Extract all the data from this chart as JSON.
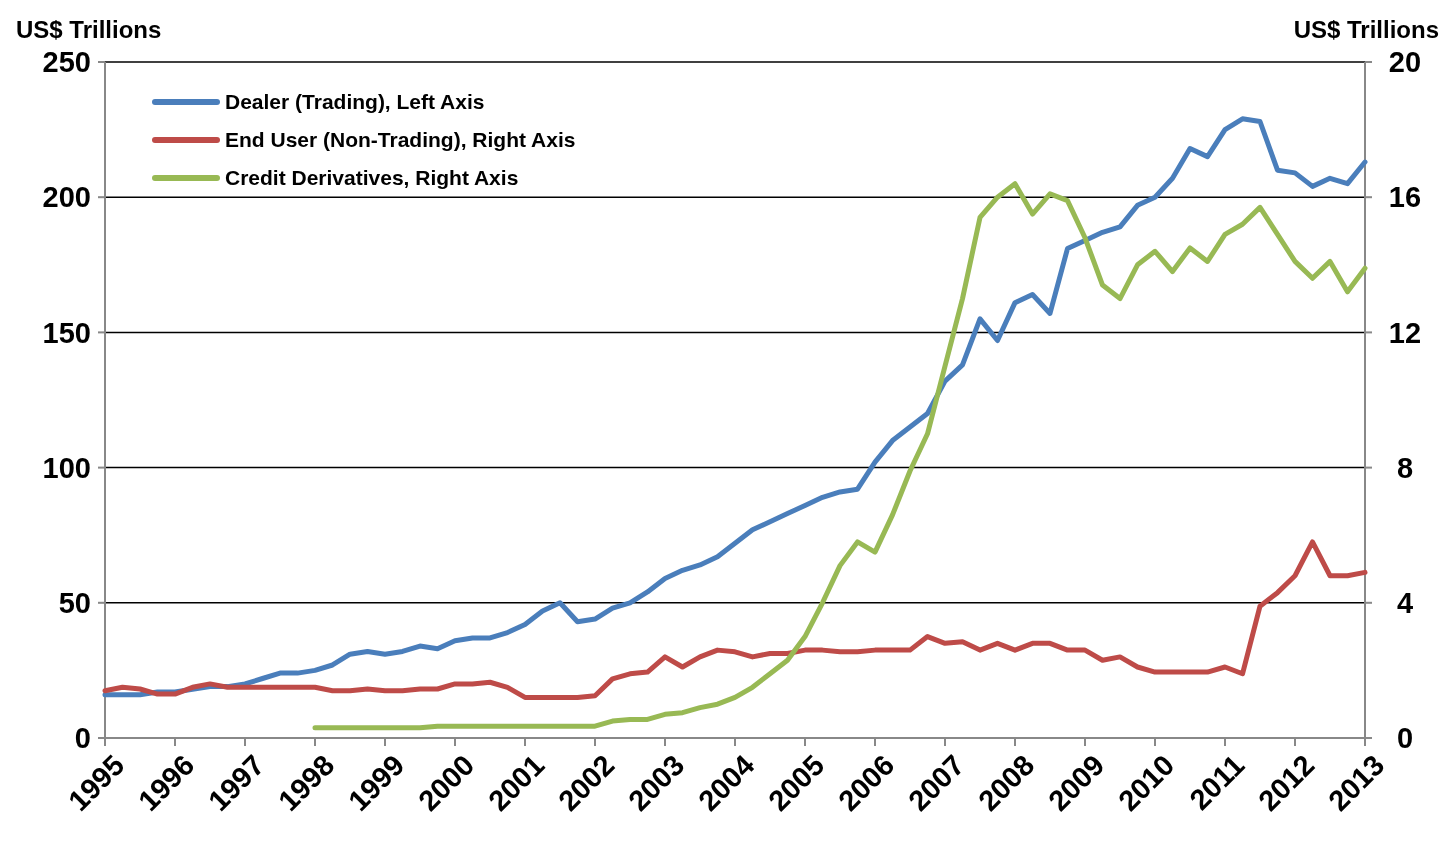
{
  "chart_data": {
    "type": "line",
    "ylabel": "US$ Trillions",
    "y2label": "US$ Trillions",
    "x": [
      1995,
      1995.25,
      1995.5,
      1995.75,
      1996,
      1996.25,
      1996.5,
      1996.75,
      1997,
      1997.25,
      1997.5,
      1997.75,
      1998,
      1998.25,
      1998.5,
      1998.75,
      1999,
      1999.25,
      1999.5,
      1999.75,
      2000,
      2000.25,
      2000.5,
      2000.75,
      2001,
      2001.25,
      2001.5,
      2001.75,
      2002,
      2002.25,
      2002.5,
      2002.75,
      2003,
      2003.25,
      2003.5,
      2003.75,
      2004,
      2004.25,
      2004.5,
      2004.75,
      2005,
      2005.25,
      2005.5,
      2005.75,
      2006,
      2006.25,
      2006.5,
      2006.75,
      2007,
      2007.25,
      2007.5,
      2007.75,
      2008,
      2008.25,
      2008.5,
      2008.75,
      2009,
      2009.25,
      2009.5,
      2009.75,
      2010,
      2010.25,
      2010.5,
      2010.75,
      2011,
      2011.25,
      2011.5,
      2011.75,
      2012,
      2012.25,
      2012.5,
      2012.75,
      2013
    ],
    "series": [
      {
        "name": "Dealer (Trading), Left Axis",
        "color": "#4a7ebb",
        "values": [
          16,
          16,
          16,
          17,
          17,
          18,
          19,
          19,
          20,
          22,
          24,
          24,
          25,
          27,
          31,
          32,
          31,
          32,
          34,
          33,
          36,
          37,
          37,
          39,
          42,
          47,
          50,
          43,
          44,
          48,
          50,
          54,
          59,
          62,
          64,
          67,
          72,
          77,
          80,
          83,
          86,
          89,
          91,
          92,
          102,
          110,
          115,
          120,
          132,
          138,
          155,
          147,
          161,
          164,
          157,
          181,
          184,
          187,
          189,
          197,
          200,
          207,
          218,
          215,
          225,
          229,
          228,
          210,
          209,
          204,
          207,
          205,
          213
        ]
      },
      {
        "name": "End User (Non-Trading), Right Axis",
        "color": "#be4b48",
        "axis": "y2",
        "values": [
          1.4,
          1.5,
          1.45,
          1.3,
          1.3,
          1.5,
          1.6,
          1.5,
          1.5,
          1.5,
          1.5,
          1.5,
          1.5,
          1.4,
          1.4,
          1.45,
          1.4,
          1.4,
          1.45,
          1.45,
          1.6,
          1.6,
          1.65,
          1.5,
          1.2,
          1.2,
          1.2,
          1.2,
          1.25,
          1.75,
          1.9,
          1.95,
          2.4,
          2.1,
          2.4,
          2.6,
          2.55,
          2.4,
          2.5,
          2.5,
          2.6,
          2.6,
          2.55,
          2.55,
          2.6,
          2.6,
          2.6,
          3.0,
          2.8,
          2.85,
          2.6,
          2.8,
          2.6,
          2.8,
          2.8,
          2.6,
          2.6,
          2.3,
          2.4,
          2.1,
          1.95,
          1.95,
          1.95,
          1.95,
          2.1,
          1.9,
          3.9,
          4.3,
          4.8,
          5.8,
          4.8,
          4.8,
          4.9
        ]
      },
      {
        "name": "Credit Derivatives, Right Axis",
        "color": "#98b954",
        "axis": "y2",
        "values": [
          null,
          null,
          null,
          null,
          null,
          null,
          null,
          null,
          null,
          null,
          null,
          null,
          0.3,
          0.3,
          0.3,
          0.3,
          0.3,
          0.3,
          0.3,
          0.35,
          0.35,
          0.35,
          0.35,
          0.35,
          0.35,
          0.35,
          0.35,
          0.35,
          0.35,
          0.5,
          0.55,
          0.55,
          0.7,
          0.75,
          0.9,
          1.0,
          1.2,
          1.5,
          1.9,
          2.3,
          3.0,
          4.0,
          5.1,
          5.8,
          5.5,
          6.6,
          7.9,
          9.0,
          11.0,
          13.0,
          15.4,
          16.0,
          16.4,
          15.5,
          16.1,
          15.9,
          14.8,
          13.4,
          13.0,
          14.0,
          14.4,
          13.8,
          14.5,
          14.1,
          14.9,
          15.2,
          15.7,
          14.9,
          14.1,
          13.6,
          14.1,
          13.2,
          13.9
        ]
      }
    ],
    "xlim": [
      1995,
      2013
    ],
    "xticks": [
      1995,
      1996,
      1997,
      1998,
      1999,
      2000,
      2001,
      2002,
      2003,
      2004,
      2005,
      2006,
      2007,
      2008,
      2009,
      2010,
      2011,
      2012,
      2013
    ],
    "ylim": [
      0,
      250
    ],
    "yticks": [
      0,
      50,
      100,
      150,
      200,
      250
    ],
    "y2lim": [
      0,
      20
    ],
    "y2ticks": [
      0,
      4,
      8,
      12,
      16,
      20
    ],
    "grid": "y",
    "legend": "top left",
    "line_style": "solid",
    "marker": "none"
  }
}
